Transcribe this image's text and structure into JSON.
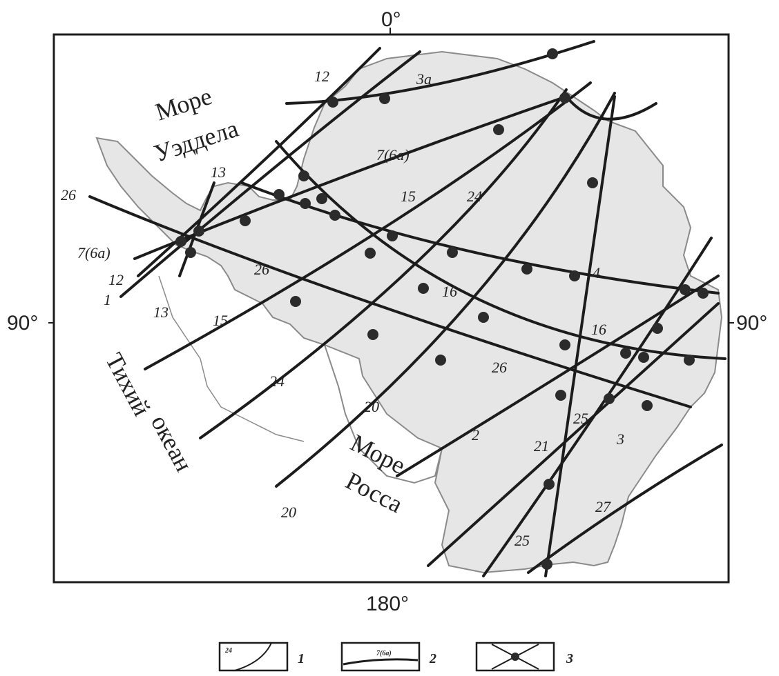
{
  "degrees": {
    "top": "0°",
    "left": "90°",
    "right": "90°",
    "bottom": "180°"
  },
  "seas": {
    "weddell": [
      "Море",
      "Уэддела"
    ],
    "pacific": [
      "Тихий",
      "океан"
    ],
    "ross": [
      "Море",
      "Росса"
    ]
  },
  "line_labels": [
    "12",
    "3а",
    "7(6а)",
    "13",
    "26",
    "15",
    "24",
    "7(6а)",
    "12",
    "1",
    "13",
    "26",
    "16",
    "4",
    "16",
    "15",
    "24",
    "26",
    "20",
    "2",
    "25",
    "3",
    "21",
    "27",
    "25",
    "20"
  ],
  "legend": {
    "items": [
      {
        "label": "1",
        "inner": "24"
      },
      {
        "label": "2",
        "inner": "7(6а)"
      },
      {
        "label": "3",
        "inner": ""
      }
    ]
  },
  "colors": {
    "land": "#e6e6e6",
    "coast": "#8a8a8a",
    "lines": "#1c1c1c"
  }
}
